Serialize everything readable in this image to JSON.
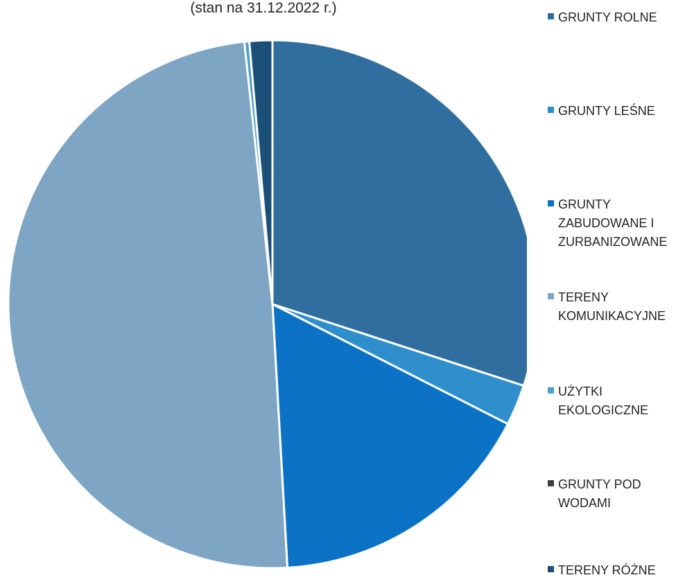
{
  "chart_data": {
    "type": "pie",
    "title": "(stan na 31.12.2022 r.)",
    "start_angle_deg": 0,
    "direction": "clockwise",
    "legend_position": "right",
    "slices": [
      {
        "label": "GRUNTY ROLNE",
        "value": 30.0,
        "color": "#2f6e9e"
      },
      {
        "label": "GRUNTY LEŚNE",
        "value": 2.5,
        "color": "#2e8fcc"
      },
      {
        "label": "GRUNTY ZABUDOWANE I ZURBANIZOWANE",
        "value": 16.6,
        "color": "#0b72c6"
      },
      {
        "label": "TERENY KOMUNIKACYJNE",
        "value": 49.2,
        "color": "#7ea5c4"
      },
      {
        "label": "UŻYTKI EKOLOGICZNE",
        "value": 0.3,
        "color": "#4aa0c8"
      },
      {
        "label": "GRUNTY POD WODAMI",
        "value": 0.0,
        "color": "#3d3d3d"
      },
      {
        "label": "TERENY RÓŻNE",
        "value": 1.4,
        "color": "#1b4f78"
      }
    ]
  }
}
